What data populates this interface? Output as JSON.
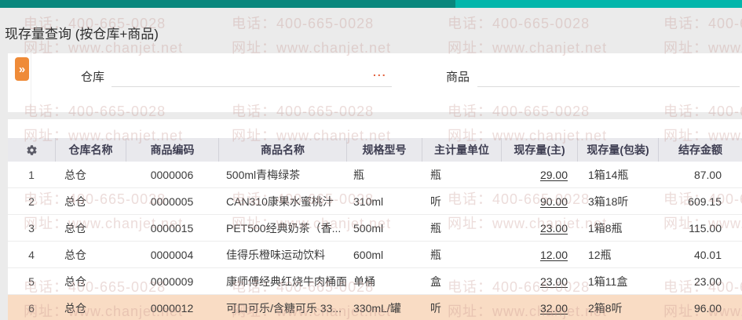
{
  "topbar": {
    "left_color": "#09877d",
    "right_color": "#02b6ab"
  },
  "watermark": {
    "lines": [
      "电话：400-665-0028",
      "网址：www.chanjet.net"
    ],
    "color": "rgba(196,150,142,0.33)"
  },
  "page": {
    "title": "现存量查询 (按仓库+商品)"
  },
  "filters": {
    "expand_button_icon": "»",
    "warehouse_label": "仓库",
    "warehouse_value": "",
    "warehouse_more_label": "...",
    "product_label": "商品",
    "product_value": ""
  },
  "accent": {
    "expand_button_orange": "#ef8b38",
    "more_button_orange": "#e2613e"
  },
  "table": {
    "settings_icon": "gear",
    "highlight_color": "#f9dcc4",
    "columns": [
      "",
      "仓库名称",
      "商品编码",
      "商品名称",
      "规格型号",
      "主计量单位",
      "现存量(主)",
      "现存量(包装)",
      "结存金额"
    ],
    "rows": [
      {
        "num": "1",
        "warehouse": "总仓",
        "code": "0000006",
        "name": "500ml青梅绿茶",
        "spec": "瓶",
        "unit": "瓶",
        "qty_main": "29.00",
        "qty_pkg": "1箱14瓶",
        "amount": "87.00",
        "highlighted": false
      },
      {
        "num": "2",
        "warehouse": "总仓",
        "code": "0000005",
        "name": "CAN310康果水蜜桃汁",
        "spec": "310ml",
        "unit": "听",
        "qty_main": "90.00",
        "qty_pkg": "3箱18听",
        "amount": "609.15",
        "highlighted": false
      },
      {
        "num": "3",
        "warehouse": "总仓",
        "code": "0000015",
        "name": "PET500经典奶茶（香...",
        "spec": "500ml",
        "unit": "瓶",
        "qty_main": "23.00",
        "qty_pkg": "1箱8瓶",
        "amount": "115.00",
        "highlighted": false
      },
      {
        "num": "4",
        "warehouse": "总仓",
        "code": "0000004",
        "name": "佳得乐橙味运动饮料",
        "spec": "600ml",
        "unit": "瓶",
        "qty_main": "12.00",
        "qty_pkg": "12瓶",
        "amount": "40.01",
        "highlighted": false
      },
      {
        "num": "5",
        "warehouse": "总仓",
        "code": "0000009",
        "name": "康师傅经典红烧牛肉桶面",
        "spec": "单桶",
        "unit": "盒",
        "qty_main": "23.00",
        "qty_pkg": "1箱11盒",
        "amount": "23.00",
        "highlighted": false
      },
      {
        "num": "6",
        "warehouse": "总仓",
        "code": "0000012",
        "name": "可口可乐/含糖可乐 33...",
        "spec": "330mL/罐",
        "unit": "听",
        "qty_main": "32.00",
        "qty_pkg": "2箱8听",
        "amount": "96.00",
        "highlighted": true
      }
    ]
  }
}
